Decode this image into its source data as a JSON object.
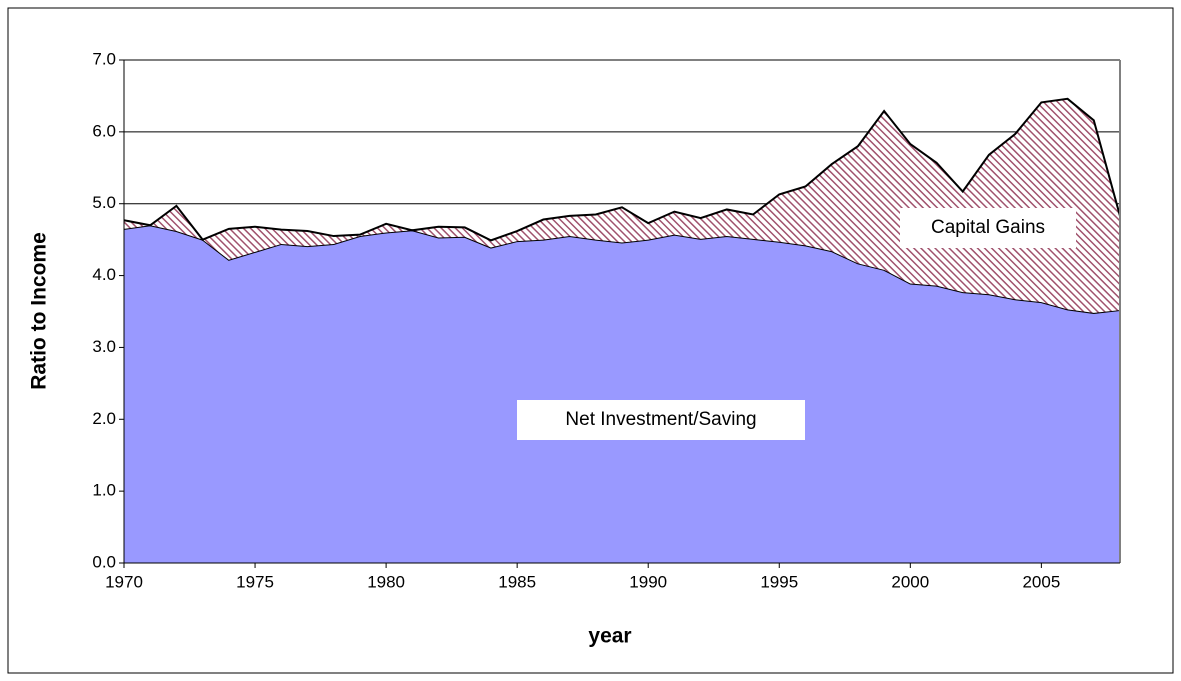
{
  "chart_data": {
    "type": "stacked_area",
    "x_label": "year",
    "y_label": "Ratio to Income",
    "x": [
      1970,
      1971,
      1972,
      1973,
      1974,
      1975,
      1976,
      1977,
      1978,
      1979,
      1980,
      1981,
      1982,
      1983,
      1984,
      1985,
      1986,
      1987,
      1988,
      1989,
      1990,
      1991,
      1992,
      1993,
      1994,
      1995,
      1996,
      1997,
      1998,
      1999,
      2000,
      2001,
      2002,
      2003,
      2004,
      2005,
      2006,
      2007,
      2008
    ],
    "series": [
      {
        "name": "Net Investment/Saving",
        "color": "#9999ff",
        "values": [
          4.65,
          4.7,
          4.62,
          4.5,
          4.22,
          4.33,
          4.44,
          4.41,
          4.44,
          4.55,
          4.6,
          4.63,
          4.53,
          4.54,
          4.39,
          4.48,
          4.5,
          4.55,
          4.5,
          4.46,
          4.5,
          4.57,
          4.51,
          4.55,
          4.51,
          4.47,
          4.42,
          4.34,
          4.17,
          4.08,
          3.89,
          3.86,
          3.77,
          3.74,
          3.67,
          3.63,
          3.53,
          3.48,
          3.52
        ]
      },
      {
        "name": "Capital Gains",
        "color": "#a0526d",
        "values": [
          0.12,
          0,
          0.35,
          0,
          0.43,
          0.35,
          0.2,
          0.21,
          0.11,
          0.02,
          0.12,
          0,
          0.15,
          0.13,
          0.1,
          0.14,
          0.28,
          0.28,
          0.35,
          0.49,
          0.23,
          0.32,
          0.29,
          0.37,
          0.34,
          0.66,
          0.82,
          1.21,
          1.63,
          2.21,
          1.94,
          1.71,
          1.4,
          1.94,
          2.3,
          2.78,
          2.93,
          2.68,
          1.31
        ]
      }
    ],
    "xlim": [
      1970,
      2008
    ],
    "xticks": [
      1970,
      1975,
      1980,
      1985,
      1990,
      1995,
      2000,
      2005
    ],
    "ylim": [
      0,
      7
    ],
    "yticks": [
      {
        "value": 0,
        "label": "0.0"
      },
      {
        "value": 1,
        "label": "1.0"
      },
      {
        "value": 2,
        "label": "2.0"
      },
      {
        "value": 3,
        "label": "3.0"
      },
      {
        "value": 4,
        "label": "4.0"
      },
      {
        "value": 5,
        "label": "5.0"
      },
      {
        "value": 6,
        "label": "6.0"
      },
      {
        "value": 7,
        "label": "7.0"
      }
    ],
    "grid": true
  }
}
